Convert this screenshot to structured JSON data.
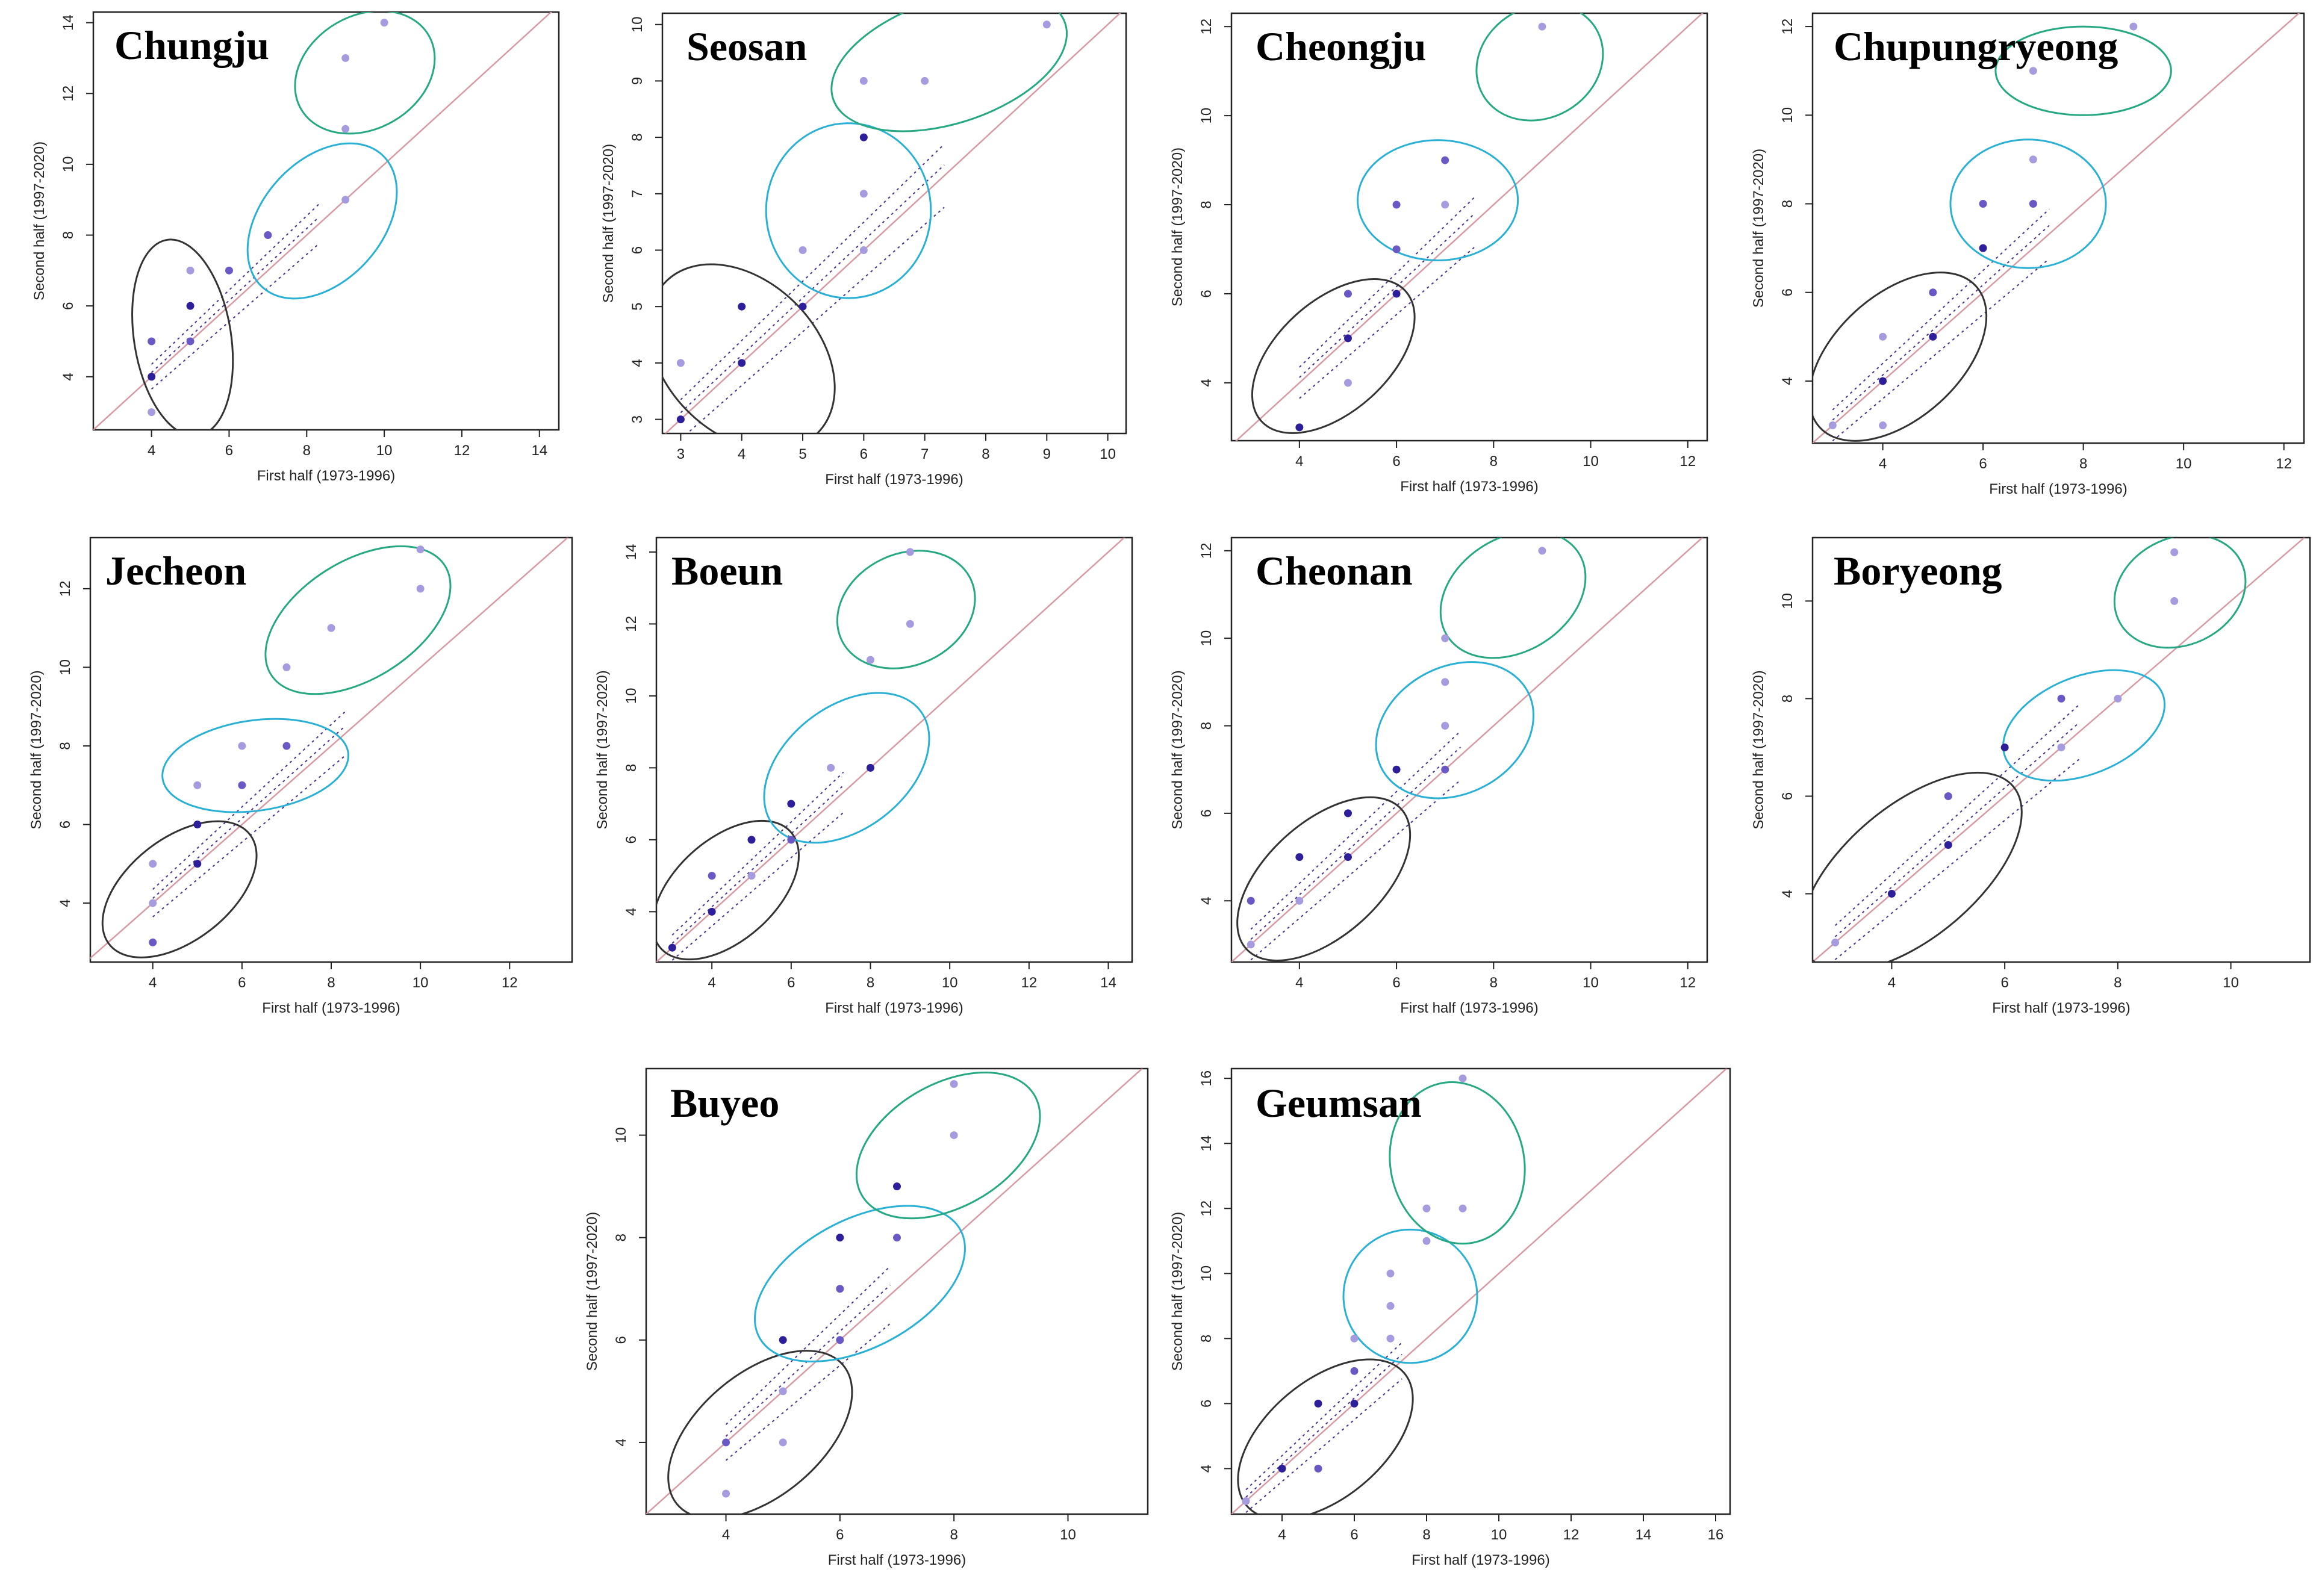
{
  "chart_data": [
    {
      "type": "scatter",
      "title": "Chungju",
      "xlabel": "First half (1973-1996)",
      "ylabel": "Second half (1997-2020)",
      "xlim": [
        2.5,
        14.5
      ],
      "ylim": [
        2.5,
        14.3
      ],
      "xticks": [
        4,
        6,
        8,
        10,
        12,
        14
      ],
      "yticks": [
        4,
        6,
        8,
        10,
        12,
        14
      ],
      "points": [
        {
          "x": 4,
          "y": 3,
          "shade": "light"
        },
        {
          "x": 4,
          "y": 4,
          "shade": "dark"
        },
        {
          "x": 4,
          "y": 5,
          "shade": "mid"
        },
        {
          "x": 5,
          "y": 5,
          "shade": "mid"
        },
        {
          "x": 5,
          "y": 6,
          "shade": "dark"
        },
        {
          "x": 5,
          "y": 7,
          "shade": "light"
        },
        {
          "x": 6,
          "y": 7,
          "shade": "mid"
        },
        {
          "x": 7,
          "y": 8,
          "shade": "mid"
        },
        {
          "x": 9,
          "y": 9,
          "shade": "light"
        },
        {
          "x": 9,
          "y": 11,
          "shade": "light"
        },
        {
          "x": 9,
          "y": 13,
          "shade": "light"
        },
        {
          "x": 10,
          "y": 14,
          "shade": "light"
        }
      ],
      "clusters": [
        {
          "color": "#333333",
          "cx": 4.8,
          "cy": 5.1,
          "rx": 1.25,
          "ry": 2.8,
          "rot": -9
        },
        {
          "color": "#2ab0d4",
          "cx": 8.4,
          "cy": 8.4,
          "rx": 2.3,
          "ry": 1.7,
          "rot": -48
        },
        {
          "color": "#26a882",
          "cx": 9.5,
          "cy": 12.6,
          "rx": 1.9,
          "ry": 1.6,
          "rot": -30
        }
      ]
    },
    {
      "type": "scatter",
      "title": "Seosan",
      "xlabel": "First half (1973-1996)",
      "ylabel": "Second half (1997-2020)",
      "xlim": [
        2.7,
        10.3
      ],
      "ylim": [
        2.75,
        10.2
      ],
      "xticks": [
        3,
        4,
        5,
        6,
        7,
        8,
        9,
        10
      ],
      "yticks": [
        3,
        4,
        5,
        6,
        7,
        8,
        9,
        10
      ],
      "points": [
        {
          "x": 3,
          "y": 3,
          "shade": "dark"
        },
        {
          "x": 3,
          "y": 4,
          "shade": "light"
        },
        {
          "x": 4,
          "y": 4,
          "shade": "dark"
        },
        {
          "x": 4,
          "y": 5,
          "shade": "dark"
        },
        {
          "x": 5,
          "y": 5,
          "shade": "dark"
        },
        {
          "x": 5,
          "y": 6,
          "shade": "light"
        },
        {
          "x": 6,
          "y": 6,
          "shade": "light"
        },
        {
          "x": 6,
          "y": 7,
          "shade": "light"
        },
        {
          "x": 6,
          "y": 8,
          "shade": "dark"
        },
        {
          "x": 6,
          "y": 9,
          "shade": "light"
        },
        {
          "x": 7,
          "y": 9,
          "shade": "light"
        },
        {
          "x": 9,
          "y": 10,
          "shade": "light"
        }
      ],
      "clusters": [
        {
          "color": "#333333",
          "cx": 4.0,
          "cy": 4.1,
          "rx": 1.25,
          "ry": 1.9,
          "rot": -45
        },
        {
          "color": "#2ab0d4",
          "cx": 5.75,
          "cy": 6.7,
          "rx": 1.35,
          "ry": 1.55,
          "rot": 0
        },
        {
          "color": "#26a882",
          "cx": 7.4,
          "cy": 9.35,
          "rx": 2.0,
          "ry": 1.1,
          "rot": -18
        }
      ]
    },
    {
      "type": "scatter",
      "title": "Cheongju",
      "xlabel": "First half (1973-1996)",
      "ylabel": "Second half (1997-2020)",
      "xlim": [
        2.6,
        12.4
      ],
      "ylim": [
        2.7,
        12.3
      ],
      "xticks": [
        4,
        6,
        8,
        10,
        12
      ],
      "yticks": [
        4,
        6,
        8,
        10,
        12
      ],
      "points": [
        {
          "x": 4,
          "y": 3,
          "shade": "dark"
        },
        {
          "x": 5,
          "y": 4,
          "shade": "light"
        },
        {
          "x": 5,
          "y": 5,
          "shade": "dark"
        },
        {
          "x": 5,
          "y": 6,
          "shade": "mid"
        },
        {
          "x": 6,
          "y": 6,
          "shade": "dark"
        },
        {
          "x": 6,
          "y": 7,
          "shade": "mid"
        },
        {
          "x": 6,
          "y": 8,
          "shade": "mid"
        },
        {
          "x": 7,
          "y": 8,
          "shade": "light"
        },
        {
          "x": 7,
          "y": 9,
          "shade": "mid"
        },
        {
          "x": 9,
          "y": 12,
          "shade": "light"
        }
      ],
      "clusters": [
        {
          "color": "#333333",
          "cx": 4.7,
          "cy": 4.6,
          "rx": 2.0,
          "ry": 1.25,
          "rot": -42
        },
        {
          "color": "#2ab0d4",
          "cx": 6.85,
          "cy": 8.1,
          "rx": 1.65,
          "ry": 1.35,
          "rot": 0
        },
        {
          "color": "#26a882",
          "cx": 8.95,
          "cy": 11.2,
          "rx": 1.35,
          "ry": 1.25,
          "rot": -30
        }
      ]
    },
    {
      "type": "scatter",
      "title": "Chupungryeong",
      "xlabel": "First half (1973-1996)",
      "ylabel": "Second half (1997-2020)",
      "xlim": [
        2.6,
        12.4
      ],
      "ylim": [
        2.6,
        12.3
      ],
      "xticks": [
        4,
        6,
        8,
        10,
        12
      ],
      "yticks": [
        4,
        6,
        8,
        10,
        12
      ],
      "points": [
        {
          "x": 3,
          "y": 3,
          "shade": "light"
        },
        {
          "x": 4,
          "y": 3,
          "shade": "light"
        },
        {
          "x": 4,
          "y": 4,
          "shade": "dark"
        },
        {
          "x": 4,
          "y": 5,
          "shade": "light"
        },
        {
          "x": 5,
          "y": 5,
          "shade": "dark"
        },
        {
          "x": 5,
          "y": 6,
          "shade": "mid"
        },
        {
          "x": 6,
          "y": 7,
          "shade": "dark"
        },
        {
          "x": 6,
          "y": 8,
          "shade": "mid"
        },
        {
          "x": 7,
          "y": 8,
          "shade": "mid"
        },
        {
          "x": 7,
          "y": 9,
          "shade": "light"
        },
        {
          "x": 7,
          "y": 11,
          "shade": "light"
        },
        {
          "x": 9,
          "y": 12,
          "shade": "light"
        }
      ],
      "clusters": [
        {
          "color": "#333333",
          "cx": 4.3,
          "cy": 4.55,
          "rx": 2.1,
          "ry": 1.4,
          "rot": -42
        },
        {
          "color": "#2ab0d4",
          "cx": 6.9,
          "cy": 8.0,
          "rx": 1.55,
          "ry": 1.45,
          "rot": 0
        },
        {
          "color": "#26a882",
          "cx": 8.0,
          "cy": 11.0,
          "rx": 1.75,
          "ry": 1.0,
          "rot": 0
        }
      ]
    },
    {
      "type": "scatter",
      "title": "Jecheon",
      "xlabel": "First half (1973-1996)",
      "ylabel": "Second half (1997-2020)",
      "xlim": [
        2.6,
        13.4
      ],
      "ylim": [
        2.5,
        13.3
      ],
      "xticks": [
        4,
        6,
        8,
        10,
        12
      ],
      "yticks": [
        4,
        6,
        8,
        10,
        12
      ],
      "points": [
        {
          "x": 4,
          "y": 3,
          "shade": "mid"
        },
        {
          "x": 4,
          "y": 4,
          "shade": "light"
        },
        {
          "x": 4,
          "y": 5,
          "shade": "light"
        },
        {
          "x": 5,
          "y": 5,
          "shade": "dark"
        },
        {
          "x": 5,
          "y": 6,
          "shade": "dark"
        },
        {
          "x": 5,
          "y": 7,
          "shade": "light"
        },
        {
          "x": 6,
          "y": 7,
          "shade": "mid"
        },
        {
          "x": 6,
          "y": 8,
          "shade": "light"
        },
        {
          "x": 7,
          "y": 8,
          "shade": "mid"
        },
        {
          "x": 7,
          "y": 10,
          "shade": "light"
        },
        {
          "x": 8,
          "y": 11,
          "shade": "light"
        },
        {
          "x": 10,
          "y": 12,
          "shade": "light"
        },
        {
          "x": 10,
          "y": 13,
          "shade": "light"
        }
      ],
      "clusters": [
        {
          "color": "#333333",
          "cx": 4.6,
          "cy": 4.35,
          "rx": 2.0,
          "ry": 1.3,
          "rot": -38
        },
        {
          "color": "#2ab0d4",
          "cx": 6.3,
          "cy": 7.5,
          "rx": 2.1,
          "ry": 1.15,
          "rot": -8
        },
        {
          "color": "#26a882",
          "cx": 8.6,
          "cy": 11.2,
          "rx": 2.3,
          "ry": 1.5,
          "rot": -32
        }
      ]
    },
    {
      "type": "scatter",
      "title": "Boeun",
      "xlabel": "First half (1973-1996)",
      "ylabel": "Second half (1997-2020)",
      "xlim": [
        2.6,
        14.6
      ],
      "ylim": [
        2.6,
        14.4
      ],
      "xticks": [
        4,
        6,
        8,
        10,
        12,
        14
      ],
      "yticks": [
        4,
        6,
        8,
        10,
        12,
        14
      ],
      "points": [
        {
          "x": 3,
          "y": 3,
          "shade": "dark"
        },
        {
          "x": 4,
          "y": 4,
          "shade": "dark"
        },
        {
          "x": 4,
          "y": 5,
          "shade": "mid"
        },
        {
          "x": 5,
          "y": 5,
          "shade": "light"
        },
        {
          "x": 5,
          "y": 6,
          "shade": "dark"
        },
        {
          "x": 6,
          "y": 6,
          "shade": "mid"
        },
        {
          "x": 6,
          "y": 7,
          "shade": "dark"
        },
        {
          "x": 7,
          "y": 8,
          "shade": "light"
        },
        {
          "x": 8,
          "y": 8,
          "shade": "dark"
        },
        {
          "x": 8,
          "y": 11,
          "shade": "light"
        },
        {
          "x": 9,
          "y": 12,
          "shade": "light"
        },
        {
          "x": 9,
          "y": 14,
          "shade": "light"
        }
      ],
      "clusters": [
        {
          "color": "#333333",
          "cx": 4.35,
          "cy": 4.6,
          "rx": 2.2,
          "ry": 1.4,
          "rot": -42
        },
        {
          "color": "#2ab0d4",
          "cx": 7.4,
          "cy": 8.0,
          "rx": 2.35,
          "ry": 1.7,
          "rot": -38
        },
        {
          "color": "#26a882",
          "cx": 8.9,
          "cy": 12.4,
          "rx": 1.8,
          "ry": 1.55,
          "rot": -25
        }
      ]
    },
    {
      "type": "scatter",
      "title": "Cheonan",
      "xlabel": "First half (1973-1996)",
      "ylabel": "Second half (1997-2020)",
      "xlim": [
        2.6,
        12.4
      ],
      "ylim": [
        2.6,
        12.3
      ],
      "xticks": [
        4,
        6,
        8,
        10,
        12
      ],
      "yticks": [
        4,
        6,
        8,
        10,
        12
      ],
      "points": [
        {
          "x": 3,
          "y": 3,
          "shade": "light"
        },
        {
          "x": 3,
          "y": 4,
          "shade": "mid"
        },
        {
          "x": 4,
          "y": 4,
          "shade": "light"
        },
        {
          "x": 4,
          "y": 5,
          "shade": "dark"
        },
        {
          "x": 5,
          "y": 5,
          "shade": "dark"
        },
        {
          "x": 5,
          "y": 6,
          "shade": "dark"
        },
        {
          "x": 6,
          "y": 7,
          "shade": "dark"
        },
        {
          "x": 7,
          "y": 7,
          "shade": "mid"
        },
        {
          "x": 7,
          "y": 8,
          "shade": "light"
        },
        {
          "x": 7,
          "y": 9,
          "shade": "light"
        },
        {
          "x": 7,
          "y": 10,
          "shade": "light"
        },
        {
          "x": 9,
          "y": 12,
          "shade": "light"
        }
      ],
      "clusters": [
        {
          "color": "#333333",
          "cx": 4.5,
          "cy": 4.5,
          "rx": 2.15,
          "ry": 1.3,
          "rot": -42
        },
        {
          "color": "#2ab0d4",
          "cx": 7.2,
          "cy": 7.9,
          "rx": 1.7,
          "ry": 1.45,
          "rot": -28
        },
        {
          "color": "#26a882",
          "cx": 8.4,
          "cy": 11.0,
          "rx": 1.6,
          "ry": 1.3,
          "rot": -32
        }
      ]
    },
    {
      "type": "scatter",
      "title": "Boryeong",
      "xlabel": "First half (1973-1996)",
      "ylabel": "Second half (1997-2020)",
      "xlim": [
        2.6,
        11.4
      ],
      "ylim": [
        2.6,
        11.3
      ],
      "xticks": [
        4,
        6,
        8,
        10
      ],
      "yticks": [
        4,
        6,
        8,
        10
      ],
      "points": [
        {
          "x": 3,
          "y": 3,
          "shade": "light"
        },
        {
          "x": 4,
          "y": 4,
          "shade": "dark"
        },
        {
          "x": 5,
          "y": 5,
          "shade": "dark"
        },
        {
          "x": 5,
          "y": 6,
          "shade": "mid"
        },
        {
          "x": 6,
          "y": 7,
          "shade": "dark"
        },
        {
          "x": 7,
          "y": 7,
          "shade": "light"
        },
        {
          "x": 7,
          "y": 8,
          "shade": "mid"
        },
        {
          "x": 8,
          "y": 8,
          "shade": "light"
        },
        {
          "x": 9,
          "y": 10,
          "shade": "light"
        },
        {
          "x": 9,
          "y": 11,
          "shade": "light"
        }
      ],
      "clusters": [
        {
          "color": "#333333",
          "cx": 4.35,
          "cy": 4.45,
          "rx": 2.35,
          "ry": 1.35,
          "rot": -40
        },
        {
          "color": "#2ab0d4",
          "cx": 7.4,
          "cy": 7.45,
          "rx": 1.5,
          "ry": 1.0,
          "rot": -22
        },
        {
          "color": "#26a882",
          "cx": 9.1,
          "cy": 10.2,
          "rx": 1.2,
          "ry": 1.1,
          "rot": -25
        }
      ]
    },
    {
      "type": "scatter",
      "title": "Buyeo",
      "xlabel": "First half (1973-1996)",
      "ylabel": "Second half (1997-2020)",
      "xlim": [
        2.6,
        11.4
      ],
      "ylim": [
        2.6,
        11.3
      ],
      "xticks": [
        4,
        6,
        8,
        10
      ],
      "yticks": [
        4,
        6,
        8,
        10
      ],
      "points": [
        {
          "x": 4,
          "y": 3,
          "shade": "light"
        },
        {
          "x": 4,
          "y": 4,
          "shade": "mid"
        },
        {
          "x": 5,
          "y": 4,
          "shade": "light"
        },
        {
          "x": 5,
          "y": 5,
          "shade": "light"
        },
        {
          "x": 5,
          "y": 6,
          "shade": "dark"
        },
        {
          "x": 6,
          "y": 6,
          "shade": "mid"
        },
        {
          "x": 6,
          "y": 7,
          "shade": "mid"
        },
        {
          "x": 6,
          "y": 8,
          "shade": "dark"
        },
        {
          "x": 7,
          "y": 8,
          "shade": "mid"
        },
        {
          "x": 7,
          "y": 9,
          "shade": "dark"
        },
        {
          "x": 8,
          "y": 10,
          "shade": "light"
        },
        {
          "x": 8,
          "y": 11,
          "shade": "light"
        }
      ],
      "clusters": [
        {
          "color": "#333333",
          "cx": 4.6,
          "cy": 4.15,
          "rx": 1.9,
          "ry": 1.2,
          "rot": -40
        },
        {
          "color": "#2ab0d4",
          "cx": 6.35,
          "cy": 7.1,
          "rx": 2.0,
          "ry": 1.25,
          "rot": -28
        },
        {
          "color": "#26a882",
          "cx": 7.9,
          "cy": 9.8,
          "rx": 1.75,
          "ry": 1.2,
          "rot": -30
        }
      ]
    },
    {
      "type": "scatter",
      "title": "Geumsan",
      "xlabel": "First half (1973-1996)",
      "ylabel": "Second half (1997-2020)",
      "xlim": [
        2.6,
        16.4
      ],
      "ylim": [
        2.6,
        16.3
      ],
      "xticks": [
        4,
        6,
        8,
        10,
        12,
        14,
        16
      ],
      "yticks": [
        4,
        6,
        8,
        10,
        12,
        14,
        16
      ],
      "points": [
        {
          "x": 3,
          "y": 3,
          "shade": "light"
        },
        {
          "x": 4,
          "y": 4,
          "shade": "dark"
        },
        {
          "x": 5,
          "y": 4,
          "shade": "mid"
        },
        {
          "x": 5,
          "y": 6,
          "shade": "dark"
        },
        {
          "x": 6,
          "y": 6,
          "shade": "dark"
        },
        {
          "x": 6,
          "y": 7,
          "shade": "mid"
        },
        {
          "x": 6,
          "y": 8,
          "shade": "light"
        },
        {
          "x": 7,
          "y": 8,
          "shade": "light"
        },
        {
          "x": 7,
          "y": 9,
          "shade": "light"
        },
        {
          "x": 7,
          "y": 10,
          "shade": "light"
        },
        {
          "x": 8,
          "y": 11,
          "shade": "light"
        },
        {
          "x": 8,
          "y": 12,
          "shade": "light"
        },
        {
          "x": 9,
          "y": 12,
          "shade": "light"
        },
        {
          "x": 9,
          "y": 16,
          "shade": "light"
        }
      ],
      "clusters": [
        {
          "color": "#333333",
          "cx": 5.2,
          "cy": 4.9,
          "rx": 2.85,
          "ry": 1.8,
          "rot": -40
        },
        {
          "color": "#2ab0d4",
          "cx": 7.55,
          "cy": 9.3,
          "rx": 1.85,
          "ry": 2.05,
          "rot": 0
        },
        {
          "color": "#26a882",
          "cx": 8.85,
          "cy": 13.4,
          "rx": 1.85,
          "ry": 2.5,
          "rot": -12
        }
      ]
    }
  ],
  "shade_colors": {
    "dark": "#2d1f99",
    "mid": "#6a58c4",
    "light": "#a79be0"
  },
  "diagonal_color": "#d79aa4"
}
